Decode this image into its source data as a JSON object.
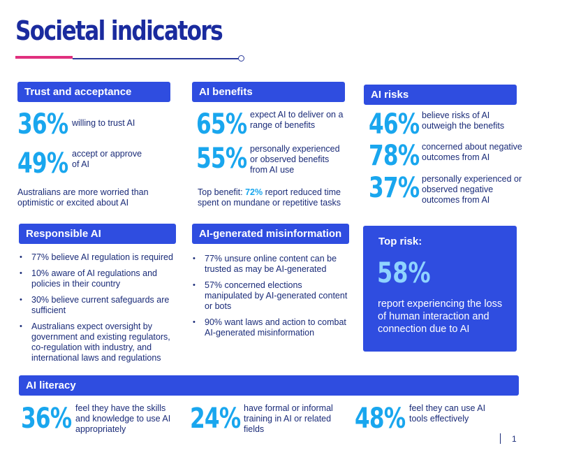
{
  "title": "Societal indicators",
  "trust": {
    "header": "Trust and acceptance",
    "stats": [
      {
        "value": "36%",
        "text": "willing to trust AI"
      },
      {
        "value": "49%",
        "text": "accept or approve of AI"
      }
    ],
    "note": "Australians are more worried than optimistic or excited about AI"
  },
  "benefits": {
    "header": "AI benefits",
    "stats": [
      {
        "value": "65%",
        "text": "expect AI to deliver on a range of benefits"
      },
      {
        "value": "55%",
        "text": "personally experienced or observed benefits from AI use"
      }
    ],
    "note_prefix": "Top benefit: ",
    "note_highlight": "72%",
    "note_suffix": " report reduced time spent on mundane or repetitive tasks"
  },
  "risks": {
    "header": "AI risks",
    "stats": [
      {
        "value": "46%",
        "text": "believe risks of AI outweigh the benefits"
      },
      {
        "value": "78%",
        "text": "concerned about negative outcomes from AI"
      },
      {
        "value": "37%",
        "text": "personally experienced or observed negative outcomes from AI"
      }
    ]
  },
  "responsible": {
    "header": "Responsible AI",
    "bullets": [
      "77% believe AI regulation is required",
      "10% aware of AI regulations and policies in their country",
      "30% believe current safeguards are sufficient",
      "Australians expect oversight by government and existing regulators, co-regulation with industry, and international laws and regulations"
    ]
  },
  "misinfo": {
    "header": "AI-generated misinformation",
    "bullets": [
      "77% unsure online content can be trusted as may be AI-generated",
      "57% concerned elections manipulated by AI-generated content or bots",
      "90% want laws and action to combat AI-generated misinformation"
    ]
  },
  "top_risk": {
    "header": "Top risk:",
    "value": "58%",
    "text": "report experiencing the loss of human interaction and connection due to AI"
  },
  "literacy": {
    "header": "AI literacy",
    "stats": [
      {
        "value": "36%",
        "text": "feel they have the skills and knowledge to use AI appropriately"
      },
      {
        "value": "24%",
        "text": "have formal or informal training in AI or related fields"
      },
      {
        "value": "48%",
        "text": "feel they can use AI tools effectively"
      }
    ]
  },
  "page_number": "1",
  "colors": {
    "header_bg": "#2f4de0",
    "stat_blue": "#19a6ee",
    "text_navy": "#1a2b78",
    "accent_pink": "#e0307e"
  }
}
